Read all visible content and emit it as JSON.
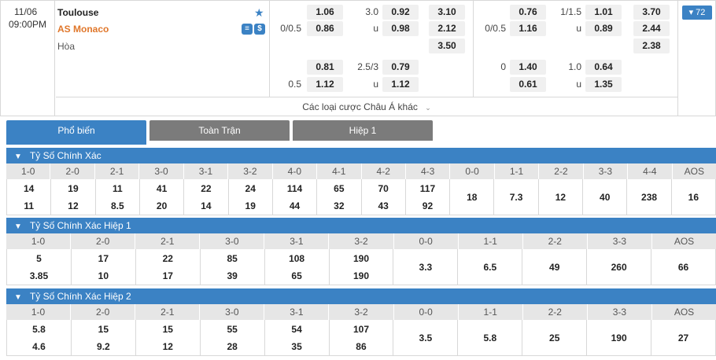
{
  "match": {
    "date": "11/06",
    "time": "09:00PM",
    "home": "Toulouse",
    "away": "AS Monaco",
    "draw": "Hòa",
    "more_count": "▾ 72",
    "full_time": {
      "line1": {
        "hdp": "",
        "home": "1.06",
        "ou_line": "3.0",
        "over": "0.92",
        "x1": "3.10"
      },
      "line2": {
        "hdp": "0/0.5",
        "away": "0.86",
        "ou_line": "u",
        "under": "0.98",
        "x2": "2.12"
      },
      "line3": {
        "x3": "3.50"
      },
      "line4": {
        "home": "0.81",
        "ou_line": "2.5/3",
        "over": "0.79"
      },
      "line5": {
        "hdp": "0.5",
        "away": "1.12",
        "ou_line": "u",
        "under": "1.12"
      }
    },
    "first_half": {
      "line1": {
        "home": "0.76",
        "ou_line": "1/1.5",
        "over": "1.01",
        "x1": "3.70"
      },
      "line2": {
        "hdp": "0/0.5",
        "away": "1.16",
        "ou_line": "u",
        "under": "0.89",
        "x2": "2.44"
      },
      "line3": {
        "x3": "2.38"
      },
      "line4": {
        "hdp": "0",
        "home": "1.40",
        "ou_line": "1.0",
        "over": "0.64"
      },
      "line5": {
        "away": "0.61",
        "ou_line": "u",
        "under": "1.35"
      }
    },
    "other_bets": "Các loại cược Châu Á khác"
  },
  "tabs": [
    "Phổ biến",
    "Toàn Trận",
    "Hiệp 1"
  ],
  "sections": [
    {
      "title": "Tỷ Số Chính Xác",
      "headers": [
        "1-0",
        "2-0",
        "2-1",
        "3-0",
        "3-1",
        "3-2",
        "4-0",
        "4-1",
        "4-2",
        "4-3",
        "0-0",
        "1-1",
        "2-2",
        "3-3",
        "4-4",
        "AOS"
      ],
      "values": [
        [
          "14",
          "11"
        ],
        [
          "19",
          "12"
        ],
        [
          "11",
          "8.5"
        ],
        [
          "41",
          "20"
        ],
        [
          "22",
          "14"
        ],
        [
          "24",
          "19"
        ],
        [
          "114",
          "44"
        ],
        [
          "65",
          "32"
        ],
        [
          "70",
          "43"
        ],
        [
          "117",
          "92"
        ],
        [
          "18"
        ],
        [
          "7.3"
        ],
        [
          "12"
        ],
        [
          "40"
        ],
        [
          "238"
        ],
        [
          "16"
        ]
      ]
    },
    {
      "title": "Tỷ Số Chính Xác Hiệp 1",
      "headers": [
        "1-0",
        "2-0",
        "2-1",
        "3-0",
        "3-1",
        "3-2",
        "0-0",
        "1-1",
        "2-2",
        "3-3",
        "AOS"
      ],
      "values": [
        [
          "5",
          "3.85"
        ],
        [
          "17",
          "10"
        ],
        [
          "22",
          "17"
        ],
        [
          "85",
          "39"
        ],
        [
          "108",
          "65"
        ],
        [
          "190",
          "190"
        ],
        [
          "3.3"
        ],
        [
          "6.5"
        ],
        [
          "49"
        ],
        [
          "260"
        ],
        [
          "66"
        ]
      ]
    },
    {
      "title": "Tỷ Số Chính Xác Hiệp 2",
      "headers": [
        "1-0",
        "2-0",
        "2-1",
        "3-0",
        "3-1",
        "3-2",
        "0-0",
        "1-1",
        "2-2",
        "3-3",
        "AOS"
      ],
      "values": [
        [
          "5.8",
          "4.6"
        ],
        [
          "15",
          "9.2"
        ],
        [
          "15",
          "12"
        ],
        [
          "55",
          "28"
        ],
        [
          "54",
          "35"
        ],
        [
          "107",
          "86"
        ],
        [
          "3.5"
        ],
        [
          "5.8"
        ],
        [
          "25"
        ],
        [
          "190"
        ],
        [
          "27"
        ]
      ]
    }
  ]
}
